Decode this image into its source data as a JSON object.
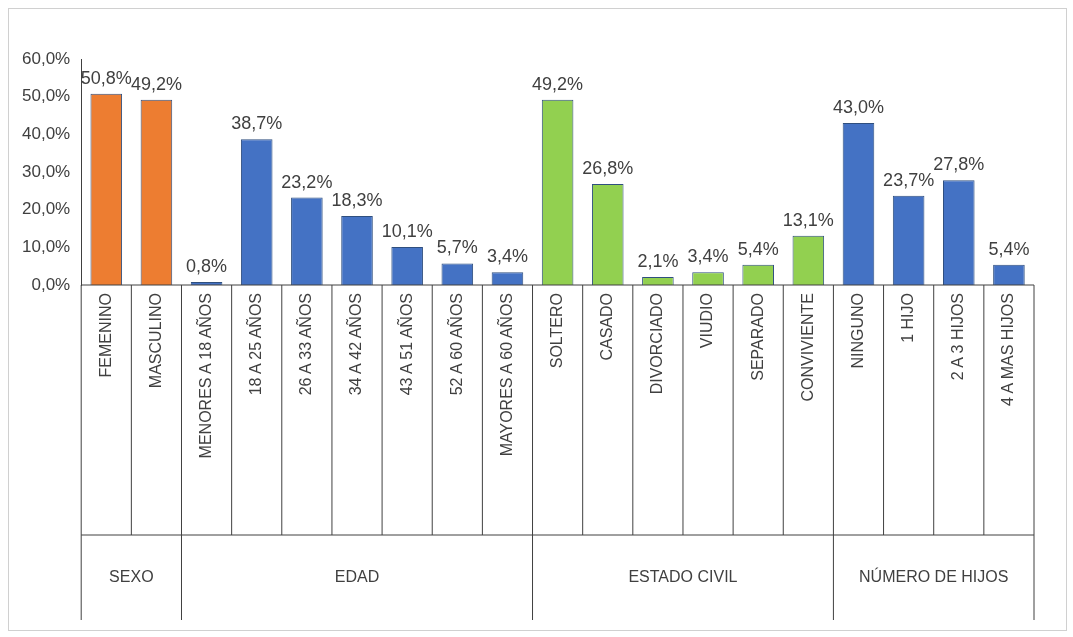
{
  "chart_data": {
    "type": "bar",
    "categories": [
      "FEMENINO",
      "MASCULINO",
      "MENORES A 18 AÑOS",
      "18 A 25 AÑOS",
      "26 A 33 AÑOS",
      "34 A 42 AÑOS",
      "43 A 51 AÑOS",
      "52 A 60 AÑOS",
      "MAYORES A 60 AÑOS",
      "SOLTERO",
      "CASADO",
      "DIVORCIADO",
      "VIUDIO",
      "SEPARADO",
      "CONVIVIENTE",
      "NINGUNO",
      "1 HIJO",
      "2 A 3 HIJOS",
      "4 A MAS HIJOS"
    ],
    "series": [
      {
        "color": "#ed7d31",
        "values": [
          50.8,
          49.2,
          null,
          null,
          null,
          null,
          null,
          null,
          null,
          null,
          null,
          null,
          null,
          null,
          null,
          null,
          null,
          null,
          null
        ],
        "value_labels": [
          "50,8%",
          "49,2%",
          null,
          null,
          null,
          null,
          null,
          null,
          null,
          null,
          null,
          null,
          null,
          null,
          null,
          null,
          null,
          null,
          null
        ]
      },
      {
        "color": "#4472c4",
        "values": [
          null,
          null,
          0.8,
          38.7,
          23.2,
          18.3,
          10.1,
          5.7,
          3.4,
          null,
          null,
          null,
          null,
          null,
          null,
          null,
          null,
          null,
          null
        ],
        "value_labels": [
          null,
          null,
          "0,8%",
          "38,7%",
          "23,2%",
          "18,3%",
          "10,1%",
          "5,7%",
          "3,4%",
          null,
          null,
          null,
          null,
          null,
          null,
          null,
          null,
          null,
          null
        ]
      },
      {
        "color": "#92d050",
        "values": [
          null,
          null,
          null,
          null,
          null,
          null,
          null,
          null,
          null,
          49.2,
          26.8,
          2.1,
          3.4,
          5.4,
          13.1,
          null,
          null,
          null,
          null
        ],
        "value_labels": [
          null,
          null,
          null,
          null,
          null,
          null,
          null,
          null,
          null,
          "49,2%",
          "26,8%",
          "2,1%",
          "3,4%",
          "5,4%",
          "13,1%",
          null,
          null,
          null,
          null
        ]
      },
      {
        "color": "#4472c4",
        "values": [
          null,
          null,
          null,
          null,
          null,
          null,
          null,
          null,
          null,
          null,
          null,
          null,
          null,
          null,
          null,
          43.0,
          23.7,
          27.8,
          5.4
        ],
        "value_labels": [
          null,
          null,
          null,
          null,
          null,
          null,
          null,
          null,
          null,
          null,
          null,
          null,
          null,
          null,
          null,
          "43,0%",
          "23,7%",
          "27,8%",
          "5,4%"
        ]
      }
    ],
    "ylim": [
      0,
      60
    ],
    "yticks": [
      {
        "value": 0,
        "label": "0,0%"
      },
      {
        "value": 10,
        "label": "10,0%"
      },
      {
        "value": 20,
        "label": "20,0%"
      },
      {
        "value": 30,
        "label": "30,0%"
      },
      {
        "value": 40,
        "label": "40,0%"
      },
      {
        "value": 50,
        "label": "50,0%"
      },
      {
        "value": 60,
        "label": "60,0%"
      }
    ],
    "annotations": [
      "SEXO",
      "EDAD",
      "ESTADO CIVIL",
      "NÚMERO DE HIJOS"
    ],
    "grid": false,
    "legend": false
  }
}
